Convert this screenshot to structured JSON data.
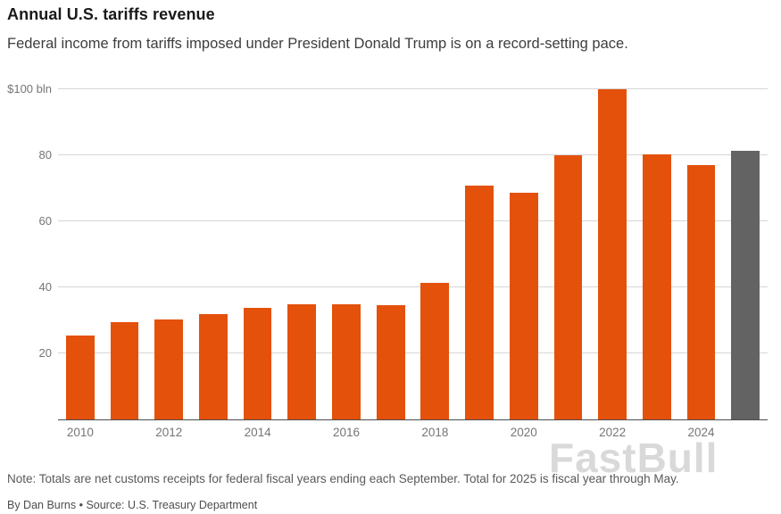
{
  "header": {
    "title": "Annual U.S. tariffs revenue",
    "subtitle": "Federal income from tariffs imposed under President Donald Trump is on a record-setting pace."
  },
  "chart_data": {
    "type": "bar",
    "title": "Annual U.S. tariffs revenue",
    "categories": [
      "2010",
      "2011",
      "2012",
      "2013",
      "2014",
      "2015",
      "2016",
      "2017",
      "2018",
      "2019",
      "2020",
      "2021",
      "2022",
      "2023",
      "2024",
      "2025"
    ],
    "values": [
      25.3,
      29.5,
      30.3,
      31.8,
      33.9,
      35.0,
      34.8,
      34.6,
      41.3,
      70.8,
      68.6,
      80.0,
      99.9,
      80.3,
      77.0,
      81.4
    ],
    "unit": "$ bln",
    "ylim": [
      0,
      100
    ],
    "yticks": [
      {
        "value": 20,
        "label": "20"
      },
      {
        "value": 40,
        "label": "40"
      },
      {
        "value": 60,
        "label": "60"
      },
      {
        "value": 80,
        "label": "80"
      },
      {
        "value": 100,
        "label": "$100 bln"
      }
    ],
    "x_tick_labels": [
      "2010",
      "",
      "2012",
      "",
      "2014",
      "",
      "2016",
      "",
      "2018",
      "",
      "2020",
      "",
      "2022",
      "",
      "2024",
      ""
    ],
    "highlight_index": 15,
    "colors": {
      "bar": "#e4510b",
      "highlight": "#636363",
      "gridline": "#d6d6d6"
    },
    "grid": "horizontal",
    "legend": "none"
  },
  "footer": {
    "note": "Note: Totals are net customs receipts for federal fiscal years ending each September. Total for 2025 is fiscal year through May.",
    "byline": "By Dan Burns • Source: U.S. Treasury Department"
  },
  "watermark": "FastBull"
}
